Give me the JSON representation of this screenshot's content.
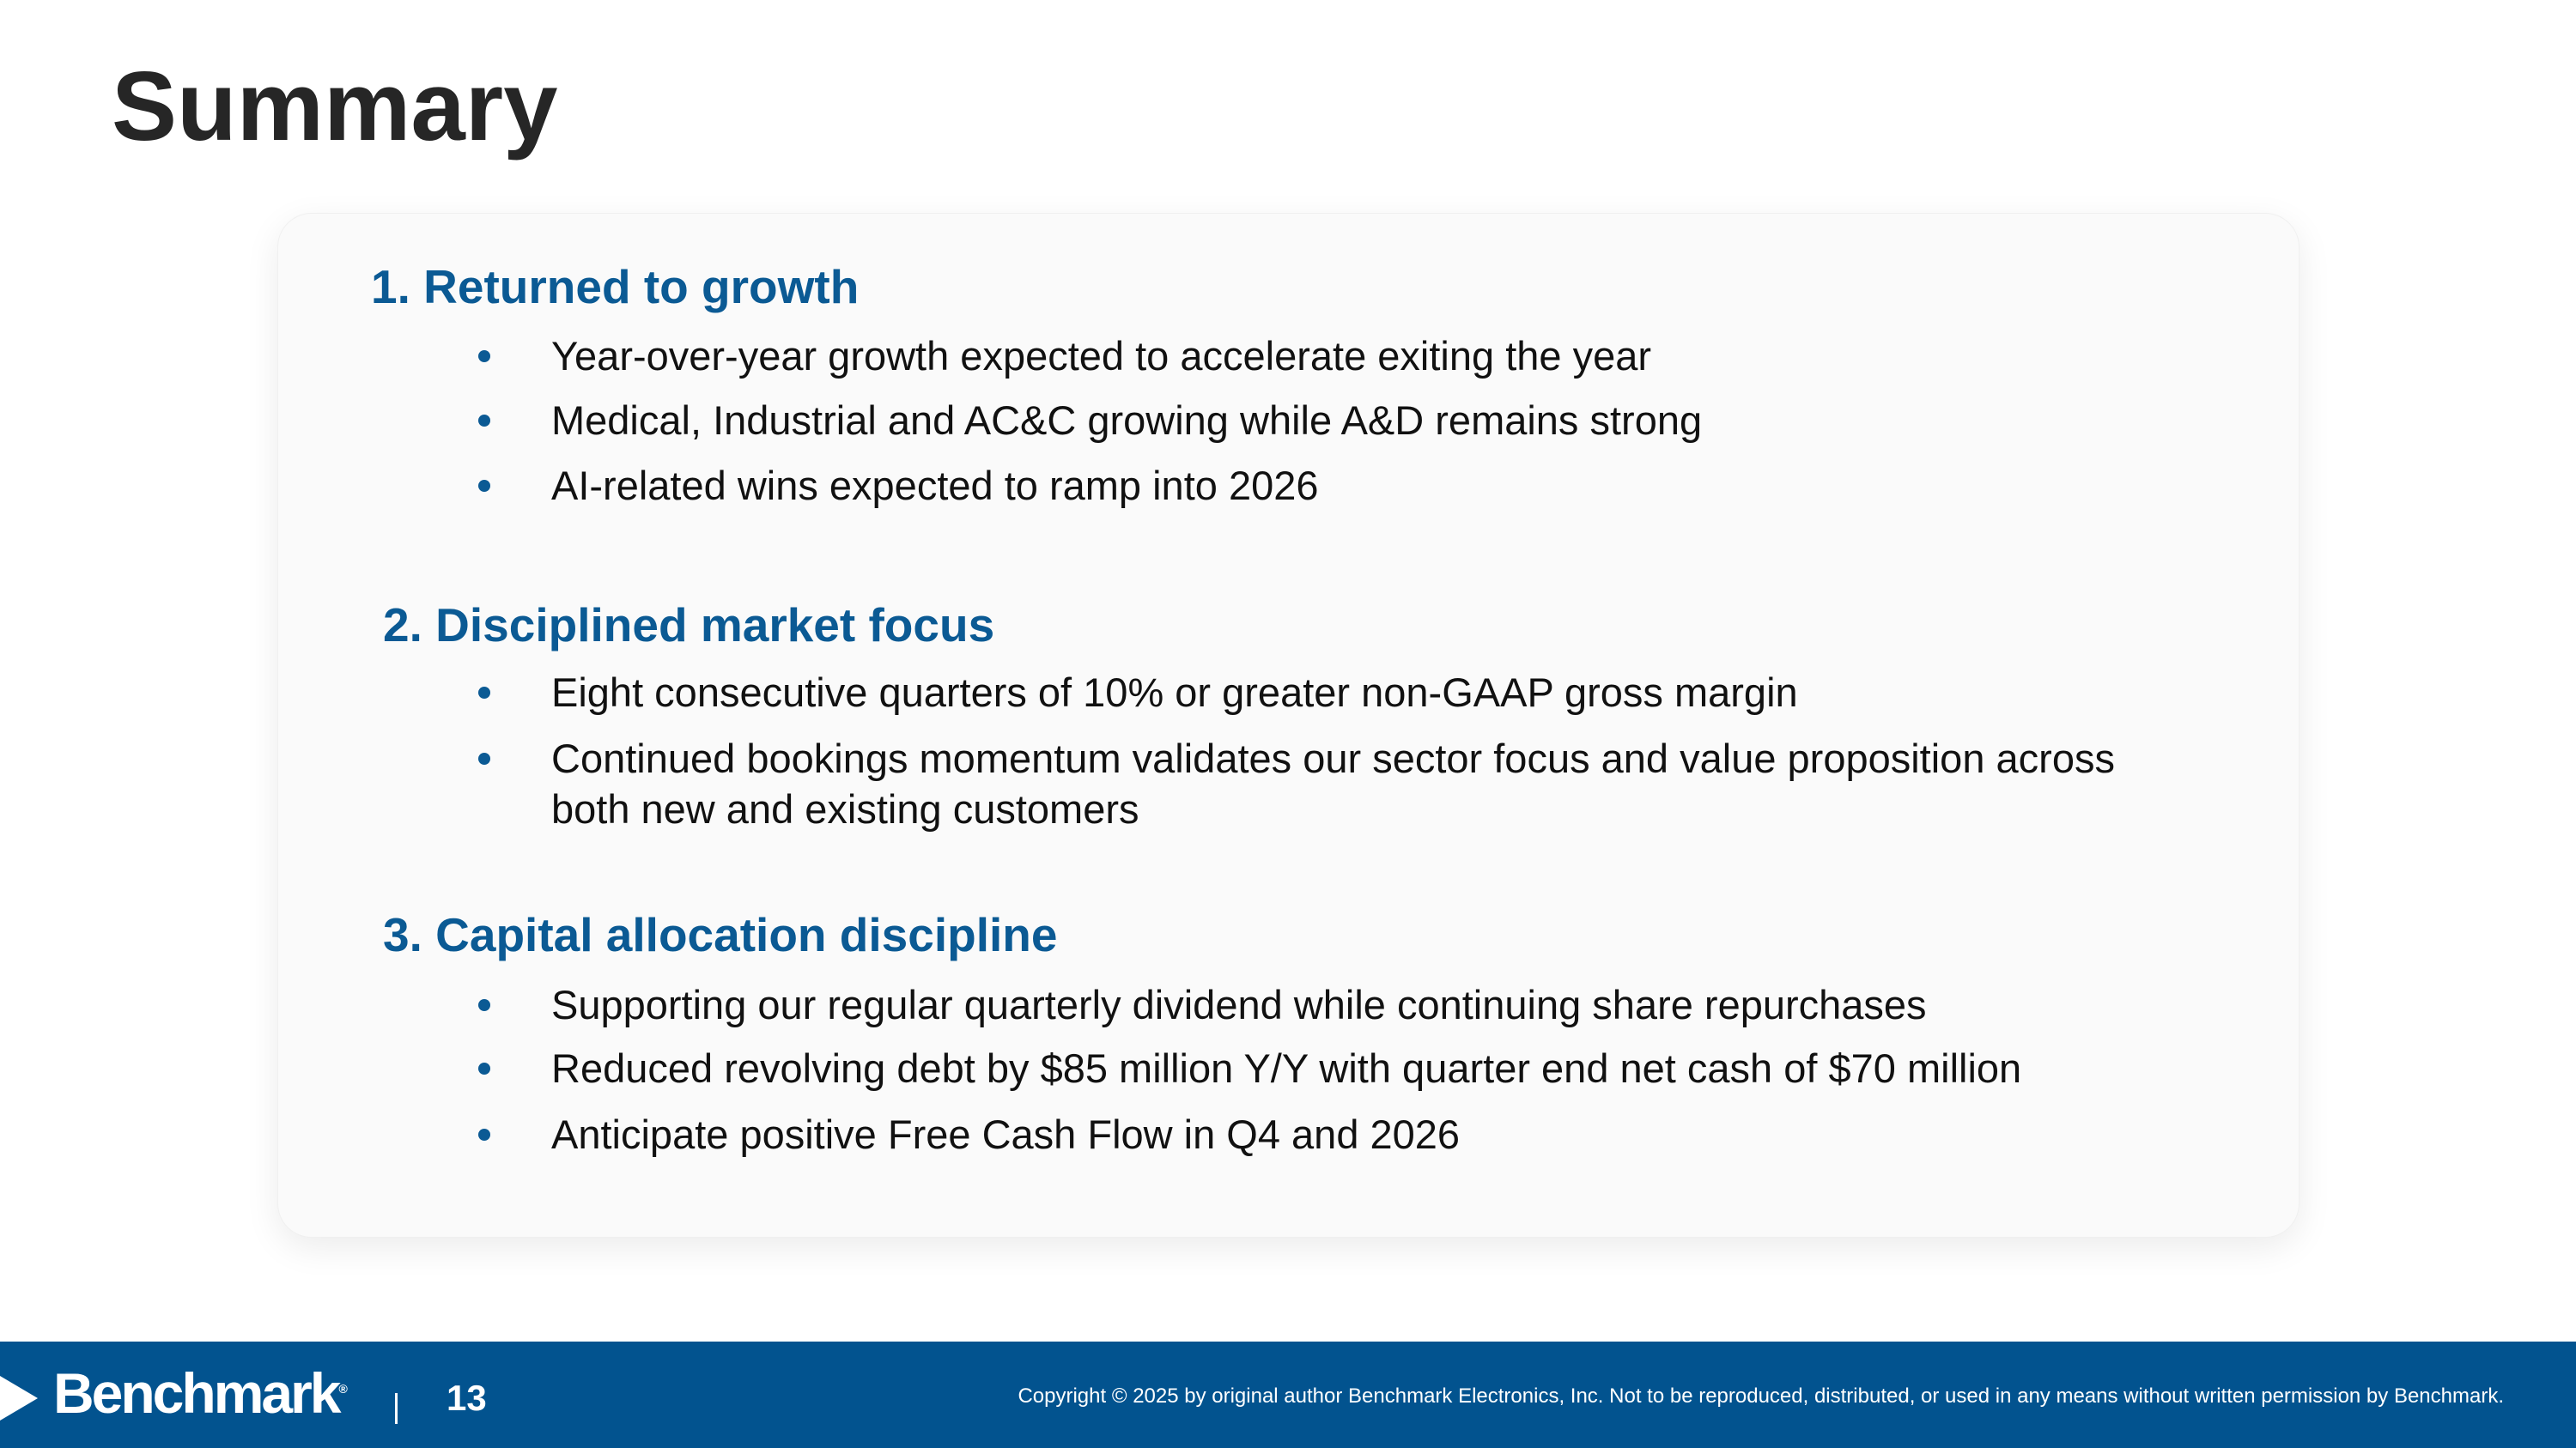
{
  "title": "Summary",
  "sections": [
    {
      "heading": "1.  Returned to growth",
      "bullets": [
        "Year-over-year growth expected to accelerate exiting the year",
        "Medical, Industrial and AC&C growing while A&D remains strong",
        "AI-related wins expected to ramp into 2026"
      ]
    },
    {
      "heading": "2.  Disciplined market focus",
      "bullets": [
        "Eight consecutive quarters of 10% or greater non-GAAP gross margin",
        "Continued bookings momentum validates our sector focus and value proposition across",
        "both new and existing customers"
      ]
    },
    {
      "heading": "3.  Capital allocation discipline",
      "bullets": [
        "Supporting our regular quarterly dividend while continuing share repurchases",
        "Reduced revolving debt by $85 million Y/Y with quarter end net cash of $70 million",
        "Anticipate positive Free Cash Flow in Q4 and 2026"
      ]
    }
  ],
  "footer": {
    "logo": "Benchmark",
    "page_number": "13",
    "copyright": "Copyright © 2025 by original author Benchmark Electronics, Inc. Not to be reproduced, distributed, or used in any means without written permission by Benchmark."
  },
  "colors": {
    "accent": "#0b5a94",
    "footer_bg": "#02538f",
    "title": "#262626"
  }
}
